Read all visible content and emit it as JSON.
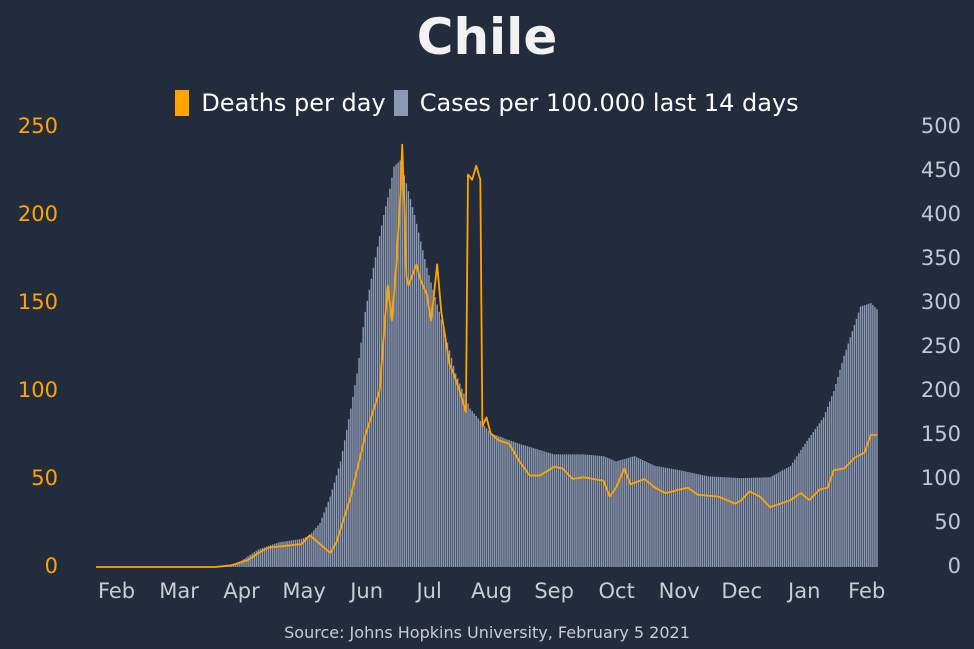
{
  "title": "Chile",
  "source": "Source: Johns Hopkins University, February 5 2021",
  "colors": {
    "background": "#232c3d",
    "deaths": "#ffa500",
    "cases": "#8d9ab3"
  },
  "chart_data": {
    "type": "bar",
    "title": "Chile",
    "legend": {
      "placement": "top-center",
      "entries": [
        "Deaths per day",
        "Cases per 100.000 last 14 days"
      ]
    },
    "grid": false,
    "x_tick_labels": [
      "Feb",
      "Mar",
      "Apr",
      "May",
      "Jun",
      "Jul",
      "Aug",
      "Sep",
      "Oct",
      "Nov",
      "Dec",
      "Jan",
      "Feb"
    ],
    "x_range": [
      "2020-01-22",
      "2021-02-05"
    ],
    "y_left": {
      "ylim": [
        0,
        250
      ],
      "ticks": [
        0,
        50,
        100,
        150,
        200,
        250
      ]
    },
    "y_right": {
      "ylim": [
        0,
        500
      ],
      "ticks": [
        0,
        50,
        100,
        150,
        200,
        250,
        300,
        350,
        400,
        450,
        500
      ]
    },
    "series": [
      {
        "name": "Cases per 100.000 last 14 days",
        "type": "bar",
        "axis": "right",
        "points": [
          [
            "2020-01-22",
            0
          ],
          [
            "2020-03-15",
            0
          ],
          [
            "2020-03-25",
            1
          ],
          [
            "2020-04-01",
            6
          ],
          [
            "2020-04-10",
            20
          ],
          [
            "2020-04-20",
            28
          ],
          [
            "2020-05-01",
            32
          ],
          [
            "2020-05-05",
            36
          ],
          [
            "2020-05-10",
            50
          ],
          [
            "2020-05-15",
            80
          ],
          [
            "2020-05-20",
            120
          ],
          [
            "2020-05-25",
            180
          ],
          [
            "2020-05-28",
            220
          ],
          [
            "2020-06-01",
            290
          ],
          [
            "2020-06-05",
            340
          ],
          [
            "2020-06-10",
            400
          ],
          [
            "2020-06-13",
            430
          ],
          [
            "2020-06-15",
            455
          ],
          [
            "2020-06-18",
            462
          ],
          [
            "2020-06-20",
            445
          ],
          [
            "2020-06-25",
            400
          ],
          [
            "2020-07-01",
            340
          ],
          [
            "2020-07-07",
            290
          ],
          [
            "2020-07-15",
            220
          ],
          [
            "2020-07-22",
            180
          ],
          [
            "2020-08-01",
            152
          ],
          [
            "2020-08-15",
            140
          ],
          [
            "2020-09-01",
            128
          ],
          [
            "2020-09-15",
            128
          ],
          [
            "2020-09-25",
            126
          ],
          [
            "2020-10-01",
            120
          ],
          [
            "2020-10-10",
            126
          ],
          [
            "2020-10-20",
            115
          ],
          [
            "2020-11-01",
            110
          ],
          [
            "2020-11-15",
            103
          ],
          [
            "2020-12-01",
            101
          ],
          [
            "2020-12-15",
            102
          ],
          [
            "2020-12-25",
            115
          ],
          [
            "2021-01-01",
            140
          ],
          [
            "2021-01-10",
            170
          ],
          [
            "2021-01-15",
            200
          ],
          [
            "2021-01-20",
            240
          ],
          [
            "2021-01-25",
            275
          ],
          [
            "2021-01-28",
            296
          ],
          [
            "2021-02-02",
            300
          ],
          [
            "2021-02-05",
            293
          ]
        ]
      },
      {
        "name": "Deaths per day",
        "type": "line",
        "axis": "left",
        "points": [
          [
            "2020-01-22",
            0
          ],
          [
            "2020-03-20",
            0
          ],
          [
            "2020-03-28",
            1
          ],
          [
            "2020-04-05",
            4
          ],
          [
            "2020-04-10",
            8
          ],
          [
            "2020-04-15",
            11
          ],
          [
            "2020-05-01",
            13
          ],
          [
            "2020-05-05",
            18
          ],
          [
            "2020-05-08",
            15
          ],
          [
            "2020-05-15",
            8
          ],
          [
            "2020-05-18",
            14
          ],
          [
            "2020-05-25",
            40
          ],
          [
            "2020-06-01",
            75
          ],
          [
            "2020-06-08",
            100
          ],
          [
            "2020-06-12",
            160
          ],
          [
            "2020-06-14",
            140
          ],
          [
            "2020-06-16",
            170
          ],
          [
            "2020-06-18",
            210
          ],
          [
            "2020-06-19",
            240
          ],
          [
            "2020-06-20",
            205
          ],
          [
            "2020-06-21",
            165
          ],
          [
            "2020-06-22",
            160
          ],
          [
            "2020-06-26",
            172
          ],
          [
            "2020-06-28",
            163
          ],
          [
            "2020-07-01",
            155
          ],
          [
            "2020-07-03",
            140
          ],
          [
            "2020-07-04",
            150
          ],
          [
            "2020-07-06",
            172
          ],
          [
            "2020-07-08",
            145
          ],
          [
            "2020-07-12",
            115
          ],
          [
            "2020-07-14",
            110
          ],
          [
            "2020-07-17",
            100
          ],
          [
            "2020-07-20",
            88
          ],
          [
            "2020-07-21",
            223
          ],
          [
            "2020-07-23",
            220
          ],
          [
            "2020-07-25",
            228
          ],
          [
            "2020-07-27",
            220
          ],
          [
            "2020-07-28",
            80
          ],
          [
            "2020-07-30",
            85
          ],
          [
            "2020-08-01",
            76
          ],
          [
            "2020-08-05",
            72
          ],
          [
            "2020-08-10",
            70
          ],
          [
            "2020-08-15",
            60
          ],
          [
            "2020-08-20",
            52
          ],
          [
            "2020-08-25",
            52
          ],
          [
            "2020-09-01",
            57
          ],
          [
            "2020-09-05",
            56
          ],
          [
            "2020-09-10",
            50
          ],
          [
            "2020-09-15",
            51
          ],
          [
            "2020-09-20",
            50
          ],
          [
            "2020-09-25",
            49
          ],
          [
            "2020-09-28",
            40
          ],
          [
            "2020-10-01",
            45
          ],
          [
            "2020-10-05",
            56
          ],
          [
            "2020-10-08",
            47
          ],
          [
            "2020-10-15",
            50
          ],
          [
            "2020-10-20",
            45
          ],
          [
            "2020-10-25",
            42
          ],
          [
            "2020-11-01",
            44
          ],
          [
            "2020-11-05",
            45
          ],
          [
            "2020-11-10",
            41
          ],
          [
            "2020-11-20",
            40
          ],
          [
            "2020-11-28",
            36
          ],
          [
            "2020-12-01",
            38
          ],
          [
            "2020-12-05",
            43
          ],
          [
            "2020-12-10",
            40
          ],
          [
            "2020-12-15",
            34
          ],
          [
            "2020-12-20",
            36
          ],
          [
            "2020-12-25",
            38
          ],
          [
            "2020-12-30",
            42
          ],
          [
            "2021-01-03",
            38
          ],
          [
            "2021-01-08",
            44
          ],
          [
            "2021-01-12",
            45
          ],
          [
            "2021-01-15",
            55
          ],
          [
            "2021-01-20",
            56
          ],
          [
            "2021-01-25",
            62
          ],
          [
            "2021-01-30",
            65
          ],
          [
            "2021-02-02",
            75
          ],
          [
            "2021-02-05",
            75
          ]
        ]
      }
    ]
  }
}
